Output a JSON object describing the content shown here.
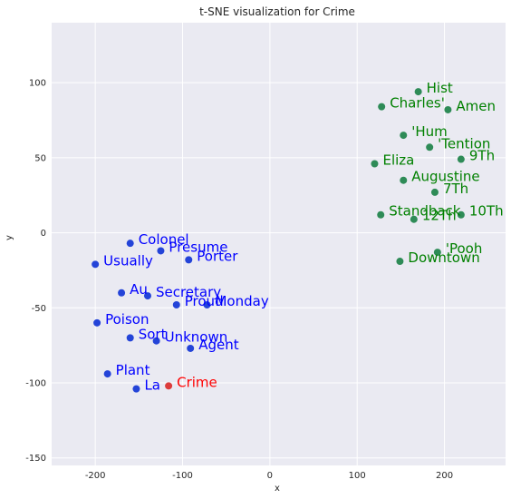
{
  "chart_data": {
    "type": "scatter",
    "title": "t-SNE visualization for Crime",
    "xlabel": "x",
    "ylabel": "y",
    "xlim": [
      -250,
      270
    ],
    "ylim": [
      -155,
      140
    ],
    "xticks": [
      -200,
      -100,
      0,
      100,
      200
    ],
    "yticks": [
      -150,
      -100,
      -50,
      0,
      50,
      100
    ],
    "grid": true,
    "colors": {
      "background": "#eaeaf2",
      "grid": "#ffffff",
      "blue_point": "#2444d8",
      "blue_text": "#0000ff",
      "green_point": "#2e8b57",
      "green_text": "#008000",
      "red_point": "#dc3c3c",
      "red_text": "#ff0000"
    },
    "series": [
      {
        "group": "blue",
        "points": [
          {
            "x": -160,
            "y": -7,
            "label": "Colonel"
          },
          {
            "x": -125,
            "y": -12,
            "label": "Presume"
          },
          {
            "x": -93,
            "y": -18,
            "label": "Porter"
          },
          {
            "x": -200,
            "y": -21,
            "label": "Usually"
          },
          {
            "x": -170,
            "y": -40,
            "label": "Au"
          },
          {
            "x": -140,
            "y": -42,
            "label": "Secretary"
          },
          {
            "x": -107,
            "y": -48,
            "label": "Proud"
          },
          {
            "x": -72,
            "y": -48,
            "label": "Monday"
          },
          {
            "x": -198,
            "y": -60,
            "label": "Poison"
          },
          {
            "x": -160,
            "y": -70,
            "label": "Sort"
          },
          {
            "x": -130,
            "y": -72,
            "label": "Unknown"
          },
          {
            "x": -91,
            "y": -77,
            "label": "Agent"
          },
          {
            "x": -186,
            "y": -94,
            "label": "Plant"
          },
          {
            "x": -153,
            "y": -104,
            "label": "La"
          }
        ]
      },
      {
        "group": "green",
        "points": [
          {
            "x": 170,
            "y": 94,
            "label": "Hist"
          },
          {
            "x": 128,
            "y": 84,
            "label": "Charles'"
          },
          {
            "x": 204,
            "y": 82,
            "label": "Amen"
          },
          {
            "x": 153,
            "y": 65,
            "label": "'Hum"
          },
          {
            "x": 183,
            "y": 57,
            "label": "'Tention"
          },
          {
            "x": 219,
            "y": 49,
            "label": "9Th"
          },
          {
            "x": 120,
            "y": 46,
            "label": "Eliza"
          },
          {
            "x": 153,
            "y": 35,
            "label": "Augustine"
          },
          {
            "x": 189,
            "y": 27,
            "label": "7Th"
          },
          {
            "x": 127,
            "y": 12,
            "label": "Standback"
          },
          {
            "x": 165,
            "y": 9,
            "label": "12Th"
          },
          {
            "x": 219,
            "y": 12,
            "label": "10Th"
          },
          {
            "x": 192,
            "y": -13,
            "label": "'Pooh"
          },
          {
            "x": 149,
            "y": -19,
            "label": "Downtown"
          }
        ]
      },
      {
        "group": "red",
        "points": [
          {
            "x": -116,
            "y": -102,
            "label": "Crime"
          }
        ]
      }
    ]
  }
}
